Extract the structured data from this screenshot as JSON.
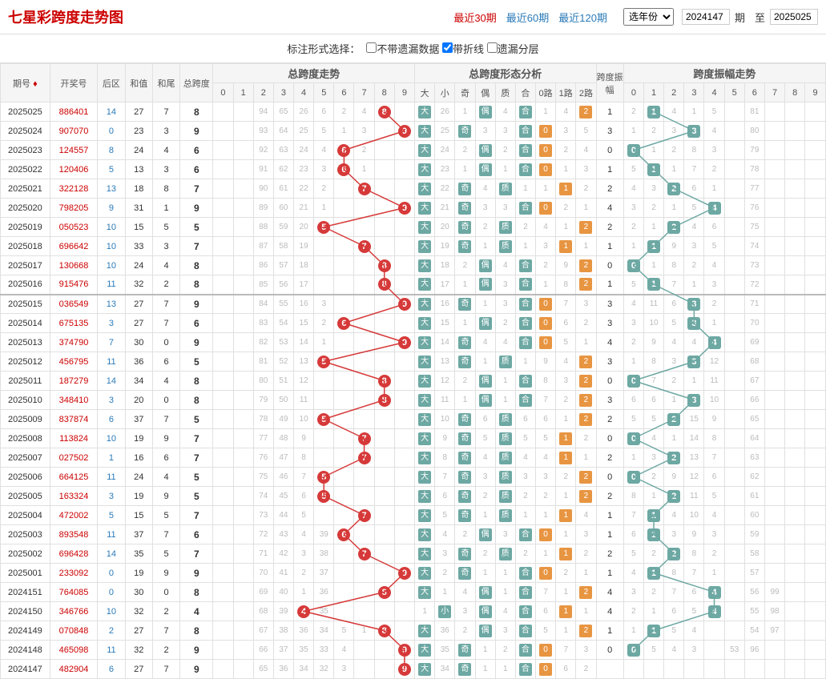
{
  "title": "七星彩跨度走势图",
  "period_links": [
    {
      "label": "最近30期",
      "active": true
    },
    {
      "label": "最近60期",
      "active": false
    },
    {
      "label": "最近120期",
      "active": false
    }
  ],
  "year_select": "选年份",
  "period_from": "2024147",
  "period_to": "2025025",
  "period_unit": "期",
  "to_label": "至",
  "filter_label": "标注形式选择：",
  "filters": [
    {
      "label": "不带遗漏数据",
      "checked": false
    },
    {
      "label": "带折线",
      "checked": true
    },
    {
      "label": "遗漏分层",
      "checked": false
    }
  ],
  "headers": {
    "period": "期号",
    "lottery": "开奖号",
    "hq": "后区",
    "hz": "和值",
    "hw": "和尾",
    "kd": "总跨度",
    "kd_trend": "总跨度走势",
    "xt": "总跨度形态分析",
    "zf": "跨度振幅",
    "zf_trend": "跨度振幅走势"
  },
  "kd_cols": [
    "0",
    "1",
    "2",
    "3",
    "4",
    "5",
    "6",
    "7",
    "8",
    "9"
  ],
  "xt_cols": [
    "大",
    "小",
    "奇",
    "偶",
    "质",
    "合",
    "0路",
    "1路",
    "2路"
  ],
  "zf_cols": [
    "0",
    "1",
    "2",
    "3",
    "4",
    "5",
    "6",
    "7",
    "8",
    "9"
  ],
  "colors": {
    "ball_red": "#d63939",
    "ball_teal": "#6da8a3",
    "tag_teal": "#6da8a3",
    "tag_orange": "#e89542",
    "miss": "#bbbbbb",
    "grid": "#e0e0e0",
    "header_bg": "#f5f5f5"
  },
  "rows": [
    {
      "period": "2025025",
      "num": "886401",
      "hq": 14,
      "hz": 27,
      "hw": 7,
      "kd": 8,
      "kd_miss": [
        "",
        "",
        "94",
        "65",
        "26",
        "6",
        "2",
        "4",
        "8",
        ""
      ],
      "xt": [
        "大",
        26,
        1,
        "偶",
        4,
        "合",
        1,
        4,
        "2#o"
      ],
      "zf": 1,
      "zf_ball": 1,
      "zf_miss": [
        2,
        "",
        4,
        1,
        5,
        "",
        "81",
        "",
        "",
        ""
      ]
    },
    {
      "period": "2025024",
      "num": "907070",
      "hq": 0,
      "hz": 23,
      "hw": 3,
      "kd": 9,
      "kd_miss": [
        "",
        "",
        "93",
        "64",
        "25",
        "5",
        "1",
        "3",
        "",
        ""
      ],
      "xt": [
        "大",
        25,
        "奇",
        3,
        3,
        "合",
        "0#o",
        3,
        5
      ],
      "zf": 3,
      "zf_ball": 3,
      "zf_miss": [
        1,
        2,
        3,
        "",
        4,
        "",
        "80",
        "",
        "",
        ""
      ]
    },
    {
      "period": "2025023",
      "num": "124557",
      "hq": 8,
      "hz": 24,
      "hw": 4,
      "kd": 6,
      "kd_miss": [
        "",
        "",
        "92",
        "63",
        "24",
        "4",
        "",
        "2",
        "",
        ""
      ],
      "xt": [
        "大",
        24,
        2,
        "偶",
        2,
        "合",
        "0#o",
        2,
        4
      ],
      "zf": 0,
      "zf_ball": 0,
      "zf_miss": [
        "",
        1,
        2,
        8,
        3,
        "",
        "79",
        "",
        "",
        ""
      ]
    },
    {
      "period": "2025022",
      "num": "120406",
      "hq": 5,
      "hz": 13,
      "hw": 3,
      "kd": 6,
      "kd_miss": [
        "",
        "",
        "91",
        "62",
        "23",
        "3",
        "",
        "1",
        "",
        ""
      ],
      "xt": [
        "大",
        23,
        1,
        "偶",
        1,
        "合",
        "0#o",
        1,
        3
      ],
      "zf": 1,
      "zf_ball": 1,
      "zf_miss": [
        5,
        "",
        1,
        7,
        2,
        "",
        "78",
        "",
        "",
        ""
      ]
    },
    {
      "period": "2025021",
      "num": "322128",
      "hq": 13,
      "hz": 18,
      "hw": 8,
      "kd": 7,
      "kd_miss": [
        "",
        "",
        "90",
        "61",
        "22",
        "2",
        "",
        "",
        "",
        ""
      ],
      "xt": [
        "大",
        22,
        "奇",
        4,
        "质",
        1,
        1,
        "1#o",
        2
      ],
      "zf": 2,
      "zf_ball": 2,
      "zf_miss": [
        4,
        3,
        "",
        6,
        1,
        "",
        "77",
        "",
        "",
        ""
      ]
    },
    {
      "period": "2025020",
      "num": "798205",
      "hq": 9,
      "hz": 31,
      "hw": 1,
      "kd": 9,
      "kd_miss": [
        "",
        "",
        "89",
        "60",
        "21",
        "1",
        "",
        "",
        "",
        ""
      ],
      "xt": [
        "大",
        21,
        "奇",
        3,
        3,
        "合",
        "0#o",
        2,
        1
      ],
      "zf": 4,
      "zf_ball": 4,
      "zf_miss": [
        3,
        2,
        1,
        5,
        "",
        "",
        "76",
        "",
        "",
        ""
      ]
    },
    {
      "period": "2025019",
      "num": "050523",
      "hq": 10,
      "hz": 15,
      "hw": 5,
      "kd": 5,
      "kd_miss": [
        "",
        "",
        "88",
        "59",
        "20",
        "",
        "",
        "",
        "",
        ""
      ],
      "xt": [
        "大",
        20,
        "奇",
        2,
        "质",
        2,
        4,
        1,
        "2#o"
      ],
      "zf": 2,
      "zf_ball": 2,
      "zf_miss": [
        2,
        1,
        "",
        4,
        6,
        "",
        "75",
        "",
        "",
        ""
      ]
    },
    {
      "period": "2025018",
      "num": "696642",
      "hq": 10,
      "hz": 33,
      "hw": 3,
      "kd": 7,
      "kd_miss": [
        "",
        "",
        "87",
        "58",
        "19",
        "",
        "",
        "",
        "",
        ""
      ],
      "xt": [
        "大",
        19,
        "奇",
        1,
        "质",
        1,
        3,
        "1#o",
        1
      ],
      "zf": 1,
      "zf_ball": 1,
      "zf_miss": [
        1,
        "",
        9,
        3,
        5,
        "",
        "74",
        "",
        "",
        ""
      ]
    },
    {
      "period": "2025017",
      "num": "130668",
      "hq": 10,
      "hz": 24,
      "hw": 4,
      "kd": 8,
      "kd_miss": [
        "",
        "",
        "86",
        "57",
        "18",
        "",
        "",
        "",
        "",
        ""
      ],
      "xt": [
        "大",
        18,
        2,
        "偶",
        4,
        "合",
        2,
        9,
        "2#o"
      ],
      "zf": 0,
      "zf_ball": 0,
      "zf_miss": [
        "",
        1,
        8,
        2,
        4,
        "",
        "73",
        "",
        "",
        ""
      ]
    },
    {
      "period": "2025016",
      "num": "915476",
      "hq": 11,
      "hz": 32,
      "hw": 2,
      "kd": 8,
      "kd_miss": [
        "",
        "",
        "85",
        "56",
        "17",
        "",
        "",
        "",
        "",
        ""
      ],
      "xt": [
        "大",
        17,
        1,
        "偶",
        3,
        "合",
        1,
        8,
        "2#o"
      ],
      "zf": 1,
      "zf_ball": 1,
      "zf_miss": [
        5,
        "",
        7,
        1,
        3,
        "",
        "72",
        "",
        "",
        ""
      ],
      "sep": false
    },
    {
      "period": "2025015",
      "num": "036549",
      "hq": 13,
      "hz": 27,
      "hw": 7,
      "kd": 9,
      "kd_miss": [
        "",
        "",
        "84",
        "55",
        "16",
        "3",
        "",
        "",
        "",
        ""
      ],
      "xt": [
        "大",
        16,
        "奇",
        1,
        3,
        "合",
        "0#o",
        7,
        3
      ],
      "zf": 3,
      "zf_ball": 3,
      "zf_miss": [
        4,
        11,
        6,
        "",
        2,
        "",
        "71",
        "",
        "",
        ""
      ],
      "sep": true
    },
    {
      "period": "2025014",
      "num": "675135",
      "hq": 3,
      "hz": 27,
      "hw": 7,
      "kd": 6,
      "kd_miss": [
        "",
        "",
        "83",
        "54",
        "15",
        "2",
        "",
        "",
        "",
        ""
      ],
      "xt": [
        "大",
        15,
        1,
        "偶",
        2,
        "合",
        "0#o",
        6,
        2
      ],
      "zf": 3,
      "zf_ball": 3,
      "zf_miss": [
        3,
        10,
        5,
        "",
        1,
        "",
        "70",
        "",
        "",
        ""
      ]
    },
    {
      "period": "2025013",
      "num": "374790",
      "hq": 7,
      "hz": 30,
      "hw": 0,
      "kd": 9,
      "kd_miss": [
        "",
        "",
        "82",
        "53",
        "14",
        "1",
        "",
        "",
        "",
        ""
      ],
      "xt": [
        "大",
        14,
        "奇",
        4,
        4,
        "合",
        "0#o",
        5,
        1
      ],
      "zf": 4,
      "zf_ball": 4,
      "zf_miss": [
        2,
        9,
        4,
        4,
        "",
        "",
        "69",
        "",
        "",
        ""
      ]
    },
    {
      "period": "2025012",
      "num": "456795",
      "hq": 11,
      "hz": 36,
      "hw": 6,
      "kd": 5,
      "kd_miss": [
        "",
        "",
        "81",
        "52",
        "13",
        "",
        "",
        "",
        "",
        ""
      ],
      "xt": [
        "大",
        13,
        "奇",
        1,
        "质",
        1,
        9,
        4,
        "2#o"
      ],
      "zf": 3,
      "zf_ball": 3,
      "zf_miss": [
        1,
        8,
        3,
        "",
        12,
        "",
        "68",
        "",
        "",
        ""
      ]
    },
    {
      "period": "2025011",
      "num": "187279",
      "hq": 14,
      "hz": 34,
      "hw": 4,
      "kd": 8,
      "kd_miss": [
        "",
        "",
        "80",
        "51",
        "12",
        "",
        "",
        "",
        "",
        ""
      ],
      "xt": [
        "大",
        12,
        2,
        "偶",
        1,
        "合",
        8,
        3,
        "2#o"
      ],
      "zf": 0,
      "zf_ball": 0,
      "zf_miss": [
        "",
        7,
        2,
        1,
        11,
        "",
        "67",
        "",
        "",
        ""
      ]
    },
    {
      "period": "2025010",
      "num": "348410",
      "hq": 3,
      "hz": 20,
      "hw": 0,
      "kd": 8,
      "kd_miss": [
        "",
        "",
        "79",
        "50",
        "11",
        "",
        "",
        "",
        "",
        ""
      ],
      "xt": [
        "大",
        11,
        1,
        "偶",
        1,
        "合",
        7,
        2,
        "2#o"
      ],
      "zf": 3,
      "zf_ball": 3,
      "zf_miss": [
        6,
        6,
        1,
        "",
        10,
        "",
        "66",
        "",
        "",
        ""
      ]
    },
    {
      "period": "2025009",
      "num": "837874",
      "hq": 6,
      "hz": 37,
      "hw": 7,
      "kd": 5,
      "kd_miss": [
        "",
        "",
        "78",
        "49",
        "10",
        "",
        "",
        "",
        "",
        ""
      ],
      "xt": [
        "大",
        10,
        "奇",
        6,
        "质",
        6,
        6,
        1,
        "2#o"
      ],
      "zf": 2,
      "zf_ball": 2,
      "zf_miss": [
        5,
        5,
        "",
        15,
        9,
        "",
        "65",
        "",
        "",
        ""
      ]
    },
    {
      "period": "2025008",
      "num": "113824",
      "hq": 10,
      "hz": 19,
      "hw": 9,
      "kd": 7,
      "kd_miss": [
        "",
        "",
        "77",
        "48",
        "9",
        "",
        "",
        "",
        "",
        ""
      ],
      "xt": [
        "大",
        9,
        "奇",
        5,
        "质",
        5,
        5,
        "1#o",
        2
      ],
      "zf": 0,
      "zf_ball": 0,
      "zf_miss": [
        "",
        4,
        1,
        14,
        8,
        "",
        "64",
        "",
        "",
        ""
      ]
    },
    {
      "period": "2025007",
      "num": "027502",
      "hq": 1,
      "hz": 16,
      "hw": 6,
      "kd": 7,
      "kd_miss": [
        "",
        "",
        "76",
        "47",
        "8",
        "",
        "",
        "",
        "",
        ""
      ],
      "xt": [
        "大",
        8,
        "奇",
        4,
        "质",
        4,
        4,
        "1#o",
        1
      ],
      "zf": 2,
      "zf_ball": 2,
      "zf_miss": [
        1,
        3,
        "",
        13,
        7,
        "",
        "63",
        "",
        "",
        ""
      ]
    },
    {
      "period": "2025006",
      "num": "664125",
      "hq": 11,
      "hz": 24,
      "hw": 4,
      "kd": 5,
      "kd_miss": [
        "",
        "",
        "75",
        "46",
        "7",
        "",
        "",
        "",
        "",
        ""
      ],
      "xt": [
        "大",
        7,
        "奇",
        3,
        "质",
        3,
        3,
        2,
        "2#o"
      ],
      "zf": 0,
      "zf_ball": 0,
      "zf_miss": [
        "",
        2,
        9,
        12,
        6,
        "",
        "62",
        "",
        "",
        ""
      ]
    },
    {
      "period": "2025005",
      "num": "163324",
      "hq": 3,
      "hz": 19,
      "hw": 9,
      "kd": 5,
      "kd_miss": [
        "",
        "",
        "74",
        "45",
        "6",
        "",
        "",
        "",
        "",
        ""
      ],
      "xt": [
        "大",
        6,
        "奇",
        2,
        "质",
        2,
        2,
        1,
        "2#o"
      ],
      "zf": 2,
      "zf_ball": 2,
      "zf_miss": [
        8,
        1,
        "",
        11,
        5,
        "",
        "61",
        "",
        "",
        ""
      ]
    },
    {
      "period": "2025004",
      "num": "472002",
      "hq": 5,
      "hz": 15,
      "hw": 5,
      "kd": 7,
      "kd_miss": [
        "",
        "",
        "73",
        "44",
        "5",
        "",
        "",
        "",
        "",
        ""
      ],
      "xt": [
        "大",
        5,
        "奇",
        1,
        "质",
        1,
        1,
        "1#o",
        4
      ],
      "zf": 1,
      "zf_ball": 1,
      "zf_miss": [
        7,
        "",
        4,
        10,
        4,
        "",
        "60",
        "",
        "",
        ""
      ]
    },
    {
      "period": "2025003",
      "num": "893548",
      "hq": 11,
      "hz": 37,
      "hw": 7,
      "kd": 6,
      "kd_miss": [
        "",
        "",
        "72",
        "43",
        "4",
        "39",
        "",
        "",
        "",
        ""
      ],
      "xt": [
        "大",
        4,
        2,
        "偶",
        3,
        "合",
        "0#o",
        1,
        3
      ],
      "zf": 1,
      "zf_ball": 1,
      "zf_miss": [
        6,
        "",
        3,
        9,
        3,
        "",
        "59",
        "",
        "",
        ""
      ]
    },
    {
      "period": "2025002",
      "num": "696428",
      "hq": 14,
      "hz": 35,
      "hw": 5,
      "kd": 7,
      "kd_miss": [
        "",
        "",
        "71",
        "42",
        "3",
        "38",
        "",
        "",
        "",
        ""
      ],
      "xt": [
        "大",
        3,
        "奇",
        2,
        "质",
        2,
        1,
        "1#o",
        2
      ],
      "zf": 2,
      "zf_ball": 2,
      "zf_miss": [
        5,
        2,
        "",
        8,
        2,
        "",
        "58",
        "",
        "",
        ""
      ]
    },
    {
      "period": "2025001",
      "num": "233092",
      "hq": 0,
      "hz": 19,
      "hw": 9,
      "kd": 9,
      "kd_miss": [
        "",
        "",
        "70",
        "41",
        "2",
        "37",
        "",
        "",
        "",
        ""
      ],
      "xt": [
        "大",
        2,
        "奇",
        1,
        1,
        "合",
        "0#o",
        2,
        1
      ],
      "zf": 1,
      "zf_ball": 1,
      "zf_miss": [
        4,
        "",
        8,
        7,
        1,
        "",
        "57",
        "",
        "",
        ""
      ]
    },
    {
      "period": "2024151",
      "num": "764085",
      "hq": 0,
      "hz": 30,
      "hw": 0,
      "kd": 8,
      "kd_miss": [
        "",
        "",
        "69",
        "40",
        "1",
        "36",
        "",
        "",
        "",
        ""
      ],
      "xt": [
        "大",
        1,
        4,
        "偶",
        1,
        "合",
        7,
        1,
        "2#o"
      ],
      "zf": 4,
      "zf_ball": 4,
      "zf_miss": [
        3,
        2,
        7,
        6,
        "",
        "",
        "56",
        "99",
        "",
        ""
      ]
    },
    {
      "period": "2024150",
      "num": "346766",
      "hq": 10,
      "hz": 32,
      "hw": 2,
      "kd": 4,
      "kd_miss": [
        "",
        "",
        "68",
        "39",
        "",
        "35",
        "",
        "",
        "",
        ""
      ],
      "xt": [
        1,
        "小",
        3,
        "偶",
        4,
        "合",
        6,
        "1#o",
        1
      ],
      "zf": 4,
      "zf_ball": 4,
      "zf_miss": [
        2,
        1,
        6,
        5,
        "",
        "",
        "55",
        "98",
        "",
        ""
      ]
    },
    {
      "period": "2024149",
      "num": "070848",
      "hq": 2,
      "hz": 27,
      "hw": 7,
      "kd": 8,
      "kd_miss": [
        "",
        "",
        "67",
        "38",
        "36",
        "34",
        "5",
        "1",
        "",
        ""
      ],
      "xt": [
        "大",
        36,
        2,
        "偶",
        3,
        "合",
        5,
        1,
        "2#o"
      ],
      "zf": 1,
      "zf_ball": 1,
      "zf_miss": [
        1,
        "",
        5,
        4,
        "",
        "",
        "54",
        "97",
        "",
        ""
      ]
    },
    {
      "period": "2024148",
      "num": "465098",
      "hq": 11,
      "hz": 32,
      "hw": 2,
      "kd": 9,
      "kd_miss": [
        "",
        "",
        "66",
        "37",
        "35",
        "33",
        "4",
        "",
        "",
        ""
      ],
      "xt": [
        "大",
        35,
        "奇",
        1,
        2,
        "合",
        "0#o",
        7,
        3
      ],
      "zf": 0,
      "zf_ball": 0,
      "zf_miss": [
        "",
        5,
        4,
        3,
        "",
        "53",
        "96",
        "",
        "",
        ""
      ]
    },
    {
      "period": "2024147",
      "num": "482904",
      "hq": 6,
      "hz": 27,
      "hw": 7,
      "kd": 9,
      "kd_miss": [
        "",
        "",
        "65",
        "36",
        "34",
        "32",
        "3",
        "",
        "",
        ""
      ],
      "xt": [
        "大",
        34,
        "奇",
        1,
        1,
        "合",
        "0#o",
        6,
        2
      ],
      "zf": null,
      "zf_ball": null,
      "zf_miss": [
        "",
        "",
        "",
        "",
        "",
        "",
        "",
        "",
        "",
        ""
      ]
    }
  ]
}
